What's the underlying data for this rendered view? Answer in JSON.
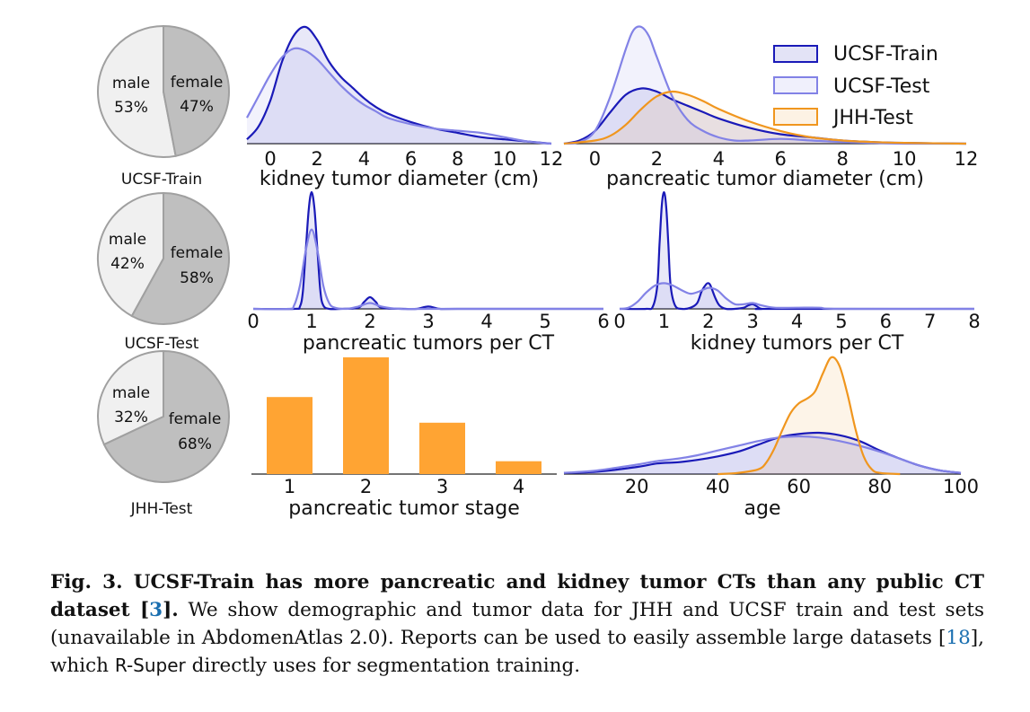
{
  "colors": {
    "ucsf_train": "#1a1ab8",
    "ucsf_test": "#8282e6",
    "jhh_test": "#f0961e",
    "female": "#bfbfbf",
    "male": "#f0f0f0",
    "bar": "#ffa433"
  },
  "pies": [
    {
      "caption": "UCSF-Train",
      "female_label": "female",
      "female_pct": "47%",
      "male_label": "male",
      "male_pct": "53%",
      "female_frac": 0.47
    },
    {
      "caption": "UCSF-Test",
      "female_label": "female",
      "female_pct": "58%",
      "male_label": "male",
      "male_pct": "42%",
      "female_frac": 0.58
    },
    {
      "caption": "JHH-Test",
      "female_label": "female",
      "female_pct": "68%",
      "male_label": "male",
      "male_pct": "32%",
      "female_frac": 0.68
    }
  ],
  "chart_data": [
    {
      "type": "area",
      "xlabel": "kidney tumor diameter (cm)",
      "xlim": [
        -1,
        12
      ],
      "xticks": [
        "0",
        "2",
        "4",
        "6",
        "8",
        "10",
        "12"
      ],
      "series": [
        {
          "name": "UCSF-Train",
          "x": [
            -1,
            -0.5,
            0,
            0.5,
            1,
            1.5,
            2,
            2.5,
            3,
            3.5,
            4,
            4.5,
            5,
            6,
            7,
            8,
            9,
            10,
            11,
            12
          ],
          "y": [
            0.02,
            0.08,
            0.2,
            0.38,
            0.5,
            0.54,
            0.48,
            0.38,
            0.31,
            0.26,
            0.21,
            0.17,
            0.14,
            0.1,
            0.07,
            0.05,
            0.03,
            0.02,
            0.01,
            0.0
          ]
        },
        {
          "name": "UCSF-Test",
          "x": [
            -1,
            -0.5,
            0,
            0.5,
            1,
            1.5,
            2,
            2.5,
            3,
            3.5,
            4,
            4.5,
            5,
            6,
            7,
            8,
            9,
            10,
            11,
            12
          ],
          "y": [
            0.12,
            0.22,
            0.32,
            0.4,
            0.44,
            0.43,
            0.39,
            0.33,
            0.27,
            0.22,
            0.18,
            0.15,
            0.12,
            0.09,
            0.07,
            0.06,
            0.05,
            0.03,
            0.01,
            0.0
          ]
        }
      ]
    },
    {
      "type": "area",
      "xlabel": "pancreatic tumor diameter (cm)",
      "xlim": [
        -1,
        12
      ],
      "xticks": [
        "0",
        "2",
        "4",
        "6",
        "8",
        "10",
        "12"
      ],
      "legend": {
        "placement": "top-right",
        "entries": [
          "UCSF-Train",
          "UCSF-Test",
          "JHH-Test"
        ]
      },
      "series": [
        {
          "name": "UCSF-Train",
          "x": [
            -1,
            -0.5,
            0,
            0.5,
            1,
            1.5,
            2,
            2.5,
            3,
            3.5,
            4,
            5,
            6,
            7,
            8,
            9,
            10,
            12
          ],
          "y": [
            0.0,
            0.02,
            0.08,
            0.2,
            0.31,
            0.35,
            0.33,
            0.28,
            0.24,
            0.2,
            0.16,
            0.1,
            0.06,
            0.04,
            0.02,
            0.01,
            0.005,
            0.0
          ]
        },
        {
          "name": "UCSF-Test",
          "x": [
            -1,
            -0.5,
            0,
            0.5,
            1,
            1.25,
            1.5,
            1.75,
            2,
            2.5,
            3,
            3.5,
            4,
            4.5,
            5,
            6,
            7,
            8,
            9,
            10,
            12
          ],
          "y": [
            0.0,
            0.01,
            0.08,
            0.3,
            0.6,
            0.72,
            0.74,
            0.68,
            0.55,
            0.3,
            0.15,
            0.08,
            0.04,
            0.02,
            0.02,
            0.03,
            0.02,
            0.01,
            0.005,
            0.0,
            0.0
          ]
        },
        {
          "name": "JHH-Test",
          "x": [
            -1,
            0,
            0.5,
            1,
            1.5,
            2,
            2.5,
            3,
            3.5,
            4,
            5,
            6,
            7,
            8,
            9,
            10,
            12
          ],
          "y": [
            0.0,
            0.02,
            0.05,
            0.12,
            0.22,
            0.3,
            0.33,
            0.31,
            0.27,
            0.22,
            0.14,
            0.08,
            0.04,
            0.02,
            0.01,
            0.005,
            0.0
          ]
        }
      ]
    },
    {
      "type": "area",
      "xlabel": "pancreatic tumors per CT",
      "xlim": [
        0,
        6
      ],
      "xticks": [
        "0",
        "1",
        "2",
        "3",
        "4",
        "5",
        "6"
      ],
      "series": [
        {
          "name": "UCSF-Train",
          "x": [
            0,
            0.7,
            0.8,
            0.85,
            0.9,
            0.95,
            1,
            1.05,
            1.1,
            1.15,
            1.2,
            1.3,
            1.5,
            1.8,
            1.9,
            2,
            2.1,
            2.2,
            2.6,
            2.8,
            3,
            3.2,
            3.5,
            6
          ],
          "y": [
            0,
            0,
            0.02,
            0.15,
            0.5,
            0.85,
            1.0,
            0.85,
            0.5,
            0.15,
            0.03,
            0,
            0,
            0.01,
            0.06,
            0.1,
            0.06,
            0.01,
            0,
            0,
            0.02,
            0,
            0,
            0
          ]
        },
        {
          "name": "UCSF-Test",
          "x": [
            0,
            0.6,
            0.7,
            0.8,
            0.9,
            1,
            1.1,
            1.2,
            1.3,
            1.4,
            1.6,
            1.8,
            2,
            2.2,
            2.5,
            3,
            6
          ],
          "y": [
            0,
            0,
            0.03,
            0.2,
            0.5,
            0.68,
            0.5,
            0.2,
            0.05,
            0.01,
            0,
            0.02,
            0.05,
            0.02,
            0,
            0,
            0
          ]
        }
      ]
    },
    {
      "type": "area",
      "xlabel": "kidney tumors per CT",
      "xlim": [
        0,
        8
      ],
      "xticks": [
        "0",
        "1",
        "2",
        "3",
        "4",
        "5",
        "6",
        "7",
        "8"
      ],
      "series": [
        {
          "name": "UCSF-Train",
          "x": [
            0,
            0.6,
            0.75,
            0.85,
            0.9,
            0.95,
            1,
            1.05,
            1.1,
            1.15,
            1.25,
            1.4,
            1.6,
            1.75,
            1.85,
            1.95,
            2,
            2.05,
            2.15,
            2.25,
            2.4,
            2.6,
            2.8,
            2.9,
            3,
            3.1,
            3.2,
            3.5,
            8
          ],
          "y": [
            0,
            0,
            0.02,
            0.2,
            0.55,
            0.88,
            1.0,
            0.88,
            0.55,
            0.2,
            0.03,
            0,
            0.01,
            0.05,
            0.15,
            0.21,
            0.22,
            0.2,
            0.1,
            0.03,
            0,
            0,
            0.01,
            0.03,
            0.04,
            0.02,
            0,
            0,
            0
          ]
        },
        {
          "name": "UCSF-Test",
          "x": [
            0,
            0.2,
            0.4,
            0.6,
            0.8,
            1,
            1.2,
            1.4,
            1.6,
            1.8,
            2,
            2.2,
            2.4,
            2.6,
            2.8,
            3,
            3.2,
            3.5,
            4,
            4.5,
            5,
            8
          ],
          "y": [
            0,
            0.01,
            0.06,
            0.14,
            0.2,
            0.22,
            0.2,
            0.16,
            0.13,
            0.15,
            0.18,
            0.16,
            0.09,
            0.04,
            0.04,
            0.05,
            0.03,
            0.01,
            0.01,
            0.01,
            0,
            0
          ]
        }
      ]
    },
    {
      "type": "bar",
      "xlabel": "pancreatic tumor stage",
      "categories": [
        "1",
        "2",
        "3",
        "4"
      ],
      "values": [
        0.66,
        1.0,
        0.44,
        0.11
      ],
      "ylim": [
        0,
        1.0
      ]
    },
    {
      "type": "area",
      "xlabel": "age",
      "xlim": [
        2,
        100
      ],
      "xticks": [
        "20",
        "40",
        "60",
        "80",
        "100"
      ],
      "series": [
        {
          "name": "UCSF-Train",
          "x": [
            2,
            10,
            20,
            25,
            30,
            35,
            40,
            45,
            50,
            55,
            60,
            65,
            70,
            75,
            80,
            85,
            90,
            95,
            100
          ],
          "y": [
            0.01,
            0.02,
            0.06,
            0.09,
            0.1,
            0.12,
            0.15,
            0.19,
            0.25,
            0.31,
            0.34,
            0.35,
            0.33,
            0.28,
            0.2,
            0.13,
            0.07,
            0.03,
            0.01
          ]
        },
        {
          "name": "UCSF-Test",
          "x": [
            2,
            10,
            20,
            25,
            30,
            35,
            40,
            45,
            50,
            55,
            60,
            65,
            70,
            75,
            80,
            85,
            90,
            95,
            100
          ],
          "y": [
            0.01,
            0.03,
            0.08,
            0.11,
            0.13,
            0.16,
            0.2,
            0.24,
            0.28,
            0.31,
            0.32,
            0.31,
            0.28,
            0.24,
            0.19,
            0.13,
            0.07,
            0.03,
            0.01
          ]
        },
        {
          "name": "JHH-Test",
          "x": [
            40,
            45,
            50,
            52,
            54,
            56,
            58,
            60,
            62,
            64,
            66,
            68,
            70,
            72,
            74,
            76,
            78,
            80,
            85
          ],
          "y": [
            0,
            0.01,
            0.04,
            0.1,
            0.22,
            0.38,
            0.52,
            0.6,
            0.64,
            0.7,
            0.86,
            0.99,
            0.92,
            0.68,
            0.38,
            0.15,
            0.04,
            0.01,
            0
          ]
        }
      ]
    }
  ],
  "caption": {
    "lead": "Fig. 3. UCSF-Train has more pancreatic and kidney tumor CTs than any public CT dataset [",
    "lead_ref": "3",
    "lead_end": "].",
    "body1": " We show demographic and tumor data for JHH and UCSF train and test sets (unavailable in AbdomenAtlas 2.0). Reports can be used to easily assemble large datasets [",
    "body_ref": "18",
    "body2": "], which ",
    "rsuper": "R-Super",
    "body3": " directly uses for segmentation training."
  }
}
